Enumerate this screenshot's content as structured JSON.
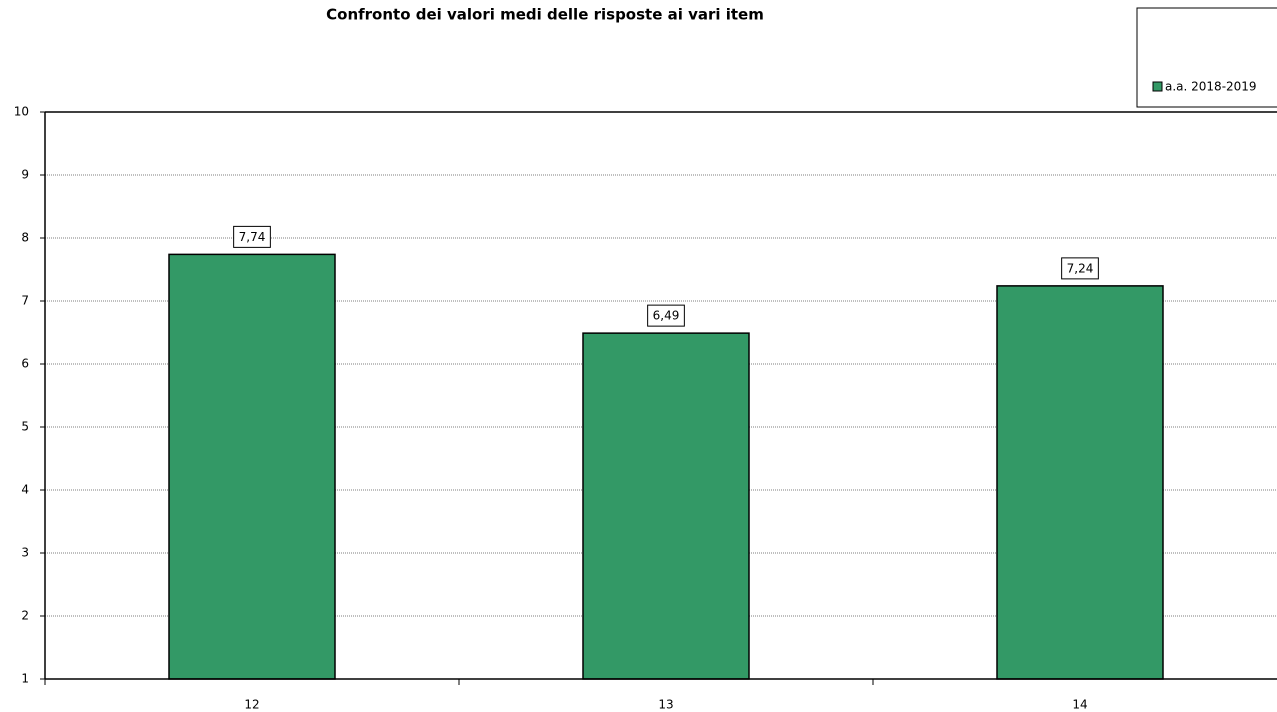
{
  "chart_data": {
    "type": "bar",
    "title": "Confronto dei valori medi delle risposte ai vari item",
    "categories": [
      "12",
      "13",
      "14"
    ],
    "series": [
      {
        "name": "a.a. 2018-2019",
        "color": "#339966",
        "values": [
          7.74,
          6.49,
          7.24
        ],
        "value_labels": [
          "7,74",
          "6,49",
          "7,24"
        ]
      }
    ],
    "ylim": [
      1,
      10
    ],
    "yticks": [
      1,
      2,
      3,
      4,
      5,
      6,
      7,
      8,
      9,
      10
    ],
    "grid": true,
    "legend": "top-right"
  }
}
